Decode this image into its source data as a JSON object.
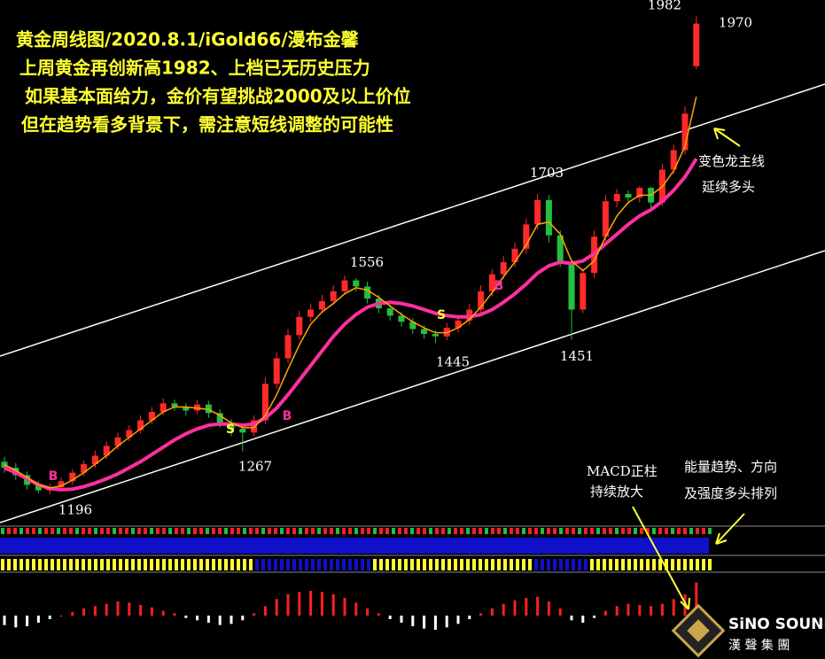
{
  "chart_data": {
    "type": "candlestick",
    "title": "黄金周线图/2020.8.1/iGold66/漫布金馨",
    "subtitle": [
      "上周黄金再创新高1982、上档已无历史压力",
      "如果基本面给力，金价有望挑战2000及以上价位",
      "但在趋势看多背景下，需注意短线调整的可能性"
    ],
    "annotations": [
      "变色龙主线",
      "延续多头",
      "MACD正柱",
      "持续放大",
      "能量趋势、方向",
      "及强度多头排列"
    ],
    "price_labels": [
      1196,
      1267,
      1556,
      1445,
      1703,
      1451,
      1982,
      1970
    ],
    "signal_labels": [
      "B",
      "S",
      "B",
      "S",
      "B"
    ],
    "ylim": [
      1150,
      2000
    ],
    "up_color": "#ff2a2a",
    "down_color": "#22c040",
    "open": [
      1250,
      1240,
      1228,
      1212,
      1203,
      1208,
      1218,
      1232,
      1246,
      1260,
      1276,
      1290,
      1302,
      1318,
      1332,
      1346,
      1340,
      1334,
      1344,
      1330,
      1314,
      1304,
      1298,
      1318,
      1378,
      1420,
      1458,
      1488,
      1500,
      1514,
      1530,
      1548,
      1538,
      1518,
      1502,
      1490,
      1480,
      1468,
      1460,
      1456,
      1470,
      1482,
      1500,
      1530,
      1558,
      1578,
      1600,
      1640,
      1680,
      1622,
      1578,
      1500,
      1560,
      1620,
      1678,
      1690,
      1684,
      1700,
      1676,
      1730,
      1762,
      1900
    ],
    "high": [
      1258,
      1248,
      1234,
      1218,
      1214,
      1224,
      1238,
      1252,
      1268,
      1284,
      1298,
      1310,
      1326,
      1340,
      1354,
      1352,
      1346,
      1352,
      1350,
      1336,
      1320,
      1310,
      1326,
      1388,
      1430,
      1468,
      1498,
      1510,
      1524,
      1540,
      1556,
      1552,
      1546,
      1524,
      1508,
      1496,
      1486,
      1474,
      1466,
      1478,
      1490,
      1510,
      1540,
      1566,
      1588,
      1610,
      1650,
      1690,
      1688,
      1630,
      1584,
      1568,
      1630,
      1688,
      1698,
      1696,
      1703,
      1702,
      1740,
      1772,
      1834,
      1982
    ],
    "low": [
      1232,
      1220,
      1204,
      1198,
      1196,
      1202,
      1212,
      1226,
      1240,
      1254,
      1270,
      1284,
      1296,
      1312,
      1326,
      1334,
      1326,
      1328,
      1322,
      1306,
      1292,
      1267,
      1292,
      1312,
      1370,
      1412,
      1450,
      1480,
      1494,
      1508,
      1524,
      1530,
      1510,
      1494,
      1482,
      1472,
      1460,
      1452,
      1445,
      1450,
      1462,
      1474,
      1494,
      1522,
      1550,
      1570,
      1592,
      1632,
      1610,
      1570,
      1451,
      1494,
      1552,
      1612,
      1668,
      1674,
      1676,
      1666,
      1670,
      1722,
      1754,
      1895
    ],
    "close": [
      1240,
      1228,
      1212,
      1203,
      1208,
      1218,
      1232,
      1246,
      1260,
      1276,
      1290,
      1302,
      1318,
      1332,
      1346,
      1340,
      1334,
      1344,
      1330,
      1314,
      1304,
      1298,
      1318,
      1378,
      1420,
      1458,
      1488,
      1500,
      1514,
      1530,
      1548,
      1538,
      1518,
      1502,
      1490,
      1480,
      1468,
      1460,
      1456,
      1470,
      1482,
      1500,
      1530,
      1558,
      1578,
      1600,
      1640,
      1680,
      1622,
      1578,
      1500,
      1560,
      1620,
      1678,
      1690,
      1684,
      1700,
      1676,
      1730,
      1762,
      1822,
      1970
    ],
    "lines": [
      {
        "color": "#ff2fa0",
        "values": [
          1240,
          1232,
          1222,
          1212,
          1206,
          1204,
          1205,
          1209,
          1215,
          1222,
          1230,
          1240,
          1250,
          1262,
          1274,
          1286,
          1296,
          1304,
          1310,
          1312,
          1312,
          1310,
          1312,
          1322,
          1338,
          1360,
          1384,
          1408,
          1432,
          1456,
          1476,
          1492,
          1504,
          1510,
          1512,
          1510,
          1506,
          1500,
          1494,
          1490,
          1488,
          1488,
          1492,
          1500,
          1512,
          1526,
          1542,
          1560,
          1572,
          1578,
          1576,
          1580,
          1592,
          1608,
          1624,
          1640,
          1654,
          1664,
          1678,
          1696,
          1718,
          1748
        ]
      },
      {
        "color": "#ffa500",
        "values": [
          1245,
          1236,
          1224,
          1212,
          1207,
          1210,
          1220,
          1232,
          1246,
          1260,
          1276,
          1290,
          1304,
          1318,
          1332,
          1340,
          1340,
          1338,
          1336,
          1326,
          1314,
          1306,
          1306,
          1326,
          1360,
          1402,
          1442,
          1476,
          1496,
          1510,
          1526,
          1536,
          1532,
          1520,
          1506,
          1492,
          1480,
          1470,
          1462,
          1462,
          1470,
          1484,
          1504,
          1528,
          1554,
          1578,
          1606,
          1640,
          1644,
          1624,
          1580,
          1564,
          1580,
          1620,
          1654,
          1676,
          1688,
          1688,
          1702,
          1728,
          1768,
          1850
        ]
      }
    ],
    "macd": {
      "ylim": [
        -30,
        30
      ],
      "pos_color": "#ff2020",
      "neg_color": "#ffffff",
      "hist": [
        -8,
        -10,
        -9,
        -6,
        -3,
        0,
        3,
        6,
        8,
        10,
        12,
        11,
        9,
        7,
        4,
        2,
        -2,
        -4,
        -6,
        -8,
        -7,
        -4,
        2,
        8,
        14,
        18,
        20,
        21,
        20,
        18,
        15,
        11,
        6,
        2,
        -3,
        -6,
        -9,
        -11,
        -12,
        -10,
        -7,
        -3,
        2,
        6,
        10,
        13,
        15,
        16,
        12,
        6,
        -4,
        -6,
        -2,
        4,
        8,
        10,
        9,
        8,
        10,
        14,
        18,
        28
      ]
    }
  },
  "logo": {
    "name": "SiNO SOUND",
    "subname": "漢 聲 集 團"
  }
}
